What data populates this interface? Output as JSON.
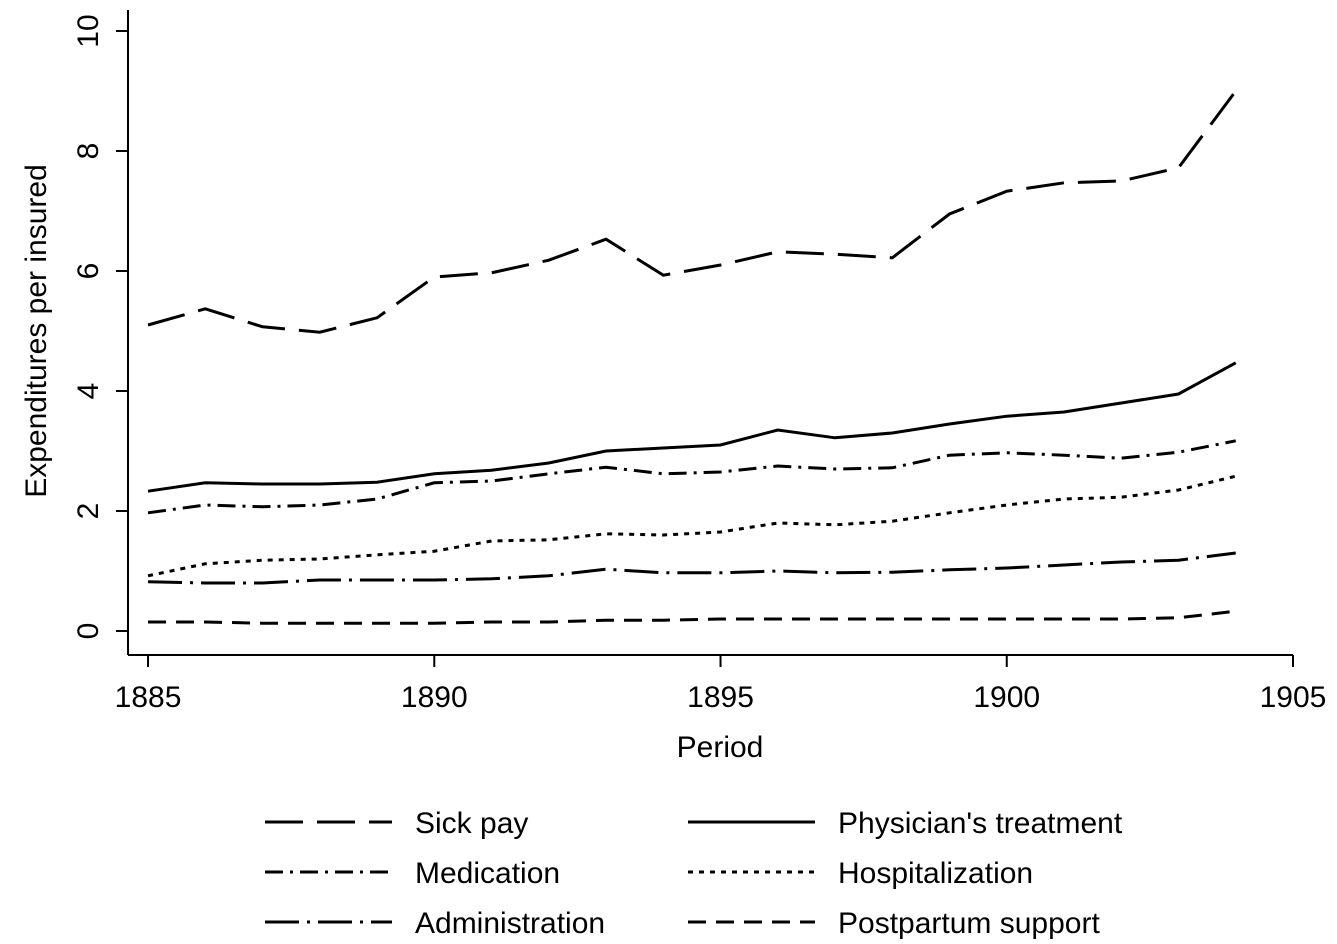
{
  "chart_data": {
    "type": "line",
    "x": [
      1885,
      1886,
      1887,
      1888,
      1889,
      1890,
      1891,
      1892,
      1893,
      1894,
      1895,
      1896,
      1897,
      1898,
      1899,
      1900,
      1901,
      1902,
      1903,
      1904
    ],
    "xlabel": "Period",
    "ylabel": "Expenditures per insured",
    "xlim": [
      1884.65,
      1905
    ],
    "xticks": [
      1885,
      1890,
      1895,
      1900,
      1905
    ],
    "ylim": [
      -0.4,
      10.35
    ],
    "yticks": [
      0,
      2,
      4,
      6,
      8,
      10
    ],
    "grid": false,
    "legend": "bottom",
    "series": [
      {
        "name": "Sick pay",
        "color": "#000000",
        "dash": "longdash",
        "values": [
          5.1,
          5.37,
          5.07,
          4.98,
          5.22,
          5.9,
          5.97,
          6.18,
          6.53,
          5.93,
          6.1,
          6.32,
          6.28,
          6.22,
          6.95,
          7.33,
          7.47,
          7.5,
          7.72,
          9.0
        ]
      },
      {
        "name": "Physician's treatment",
        "color": "#000000",
        "dash": "solid",
        "values": [
          2.33,
          2.47,
          2.45,
          2.45,
          2.48,
          2.62,
          2.68,
          2.8,
          3.0,
          3.05,
          3.1,
          3.35,
          3.22,
          3.3,
          3.45,
          3.58,
          3.65,
          3.8,
          3.95,
          4.47
        ]
      },
      {
        "name": "Medication",
        "color": "#000000",
        "dash": "dashdot",
        "values": [
          1.97,
          2.1,
          2.07,
          2.1,
          2.2,
          2.47,
          2.5,
          2.62,
          2.73,
          2.62,
          2.65,
          2.75,
          2.7,
          2.72,
          2.93,
          2.97,
          2.93,
          2.88,
          2.98,
          3.17
        ]
      },
      {
        "name": "Hospitalization",
        "color": "#000000",
        "dash": "dot",
        "values": [
          0.92,
          1.12,
          1.18,
          1.2,
          1.27,
          1.33,
          1.5,
          1.52,
          1.62,
          1.6,
          1.65,
          1.8,
          1.77,
          1.83,
          1.97,
          2.1,
          2.2,
          2.23,
          2.35,
          2.58
        ]
      },
      {
        "name": "Administration",
        "color": "#000000",
        "dash": "longdashdot",
        "values": [
          0.82,
          0.8,
          0.8,
          0.85,
          0.85,
          0.85,
          0.87,
          0.92,
          1.03,
          0.97,
          0.97,
          1.0,
          0.97,
          0.98,
          1.02,
          1.05,
          1.1,
          1.15,
          1.18,
          1.3
        ]
      },
      {
        "name": "Postpartum support",
        "color": "#000000",
        "dash": "dash",
        "values": [
          0.15,
          0.15,
          0.13,
          0.13,
          0.13,
          0.13,
          0.15,
          0.15,
          0.18,
          0.18,
          0.2,
          0.2,
          0.2,
          0.2,
          0.2,
          0.2,
          0.2,
          0.2,
          0.22,
          0.33
        ]
      }
    ]
  }
}
